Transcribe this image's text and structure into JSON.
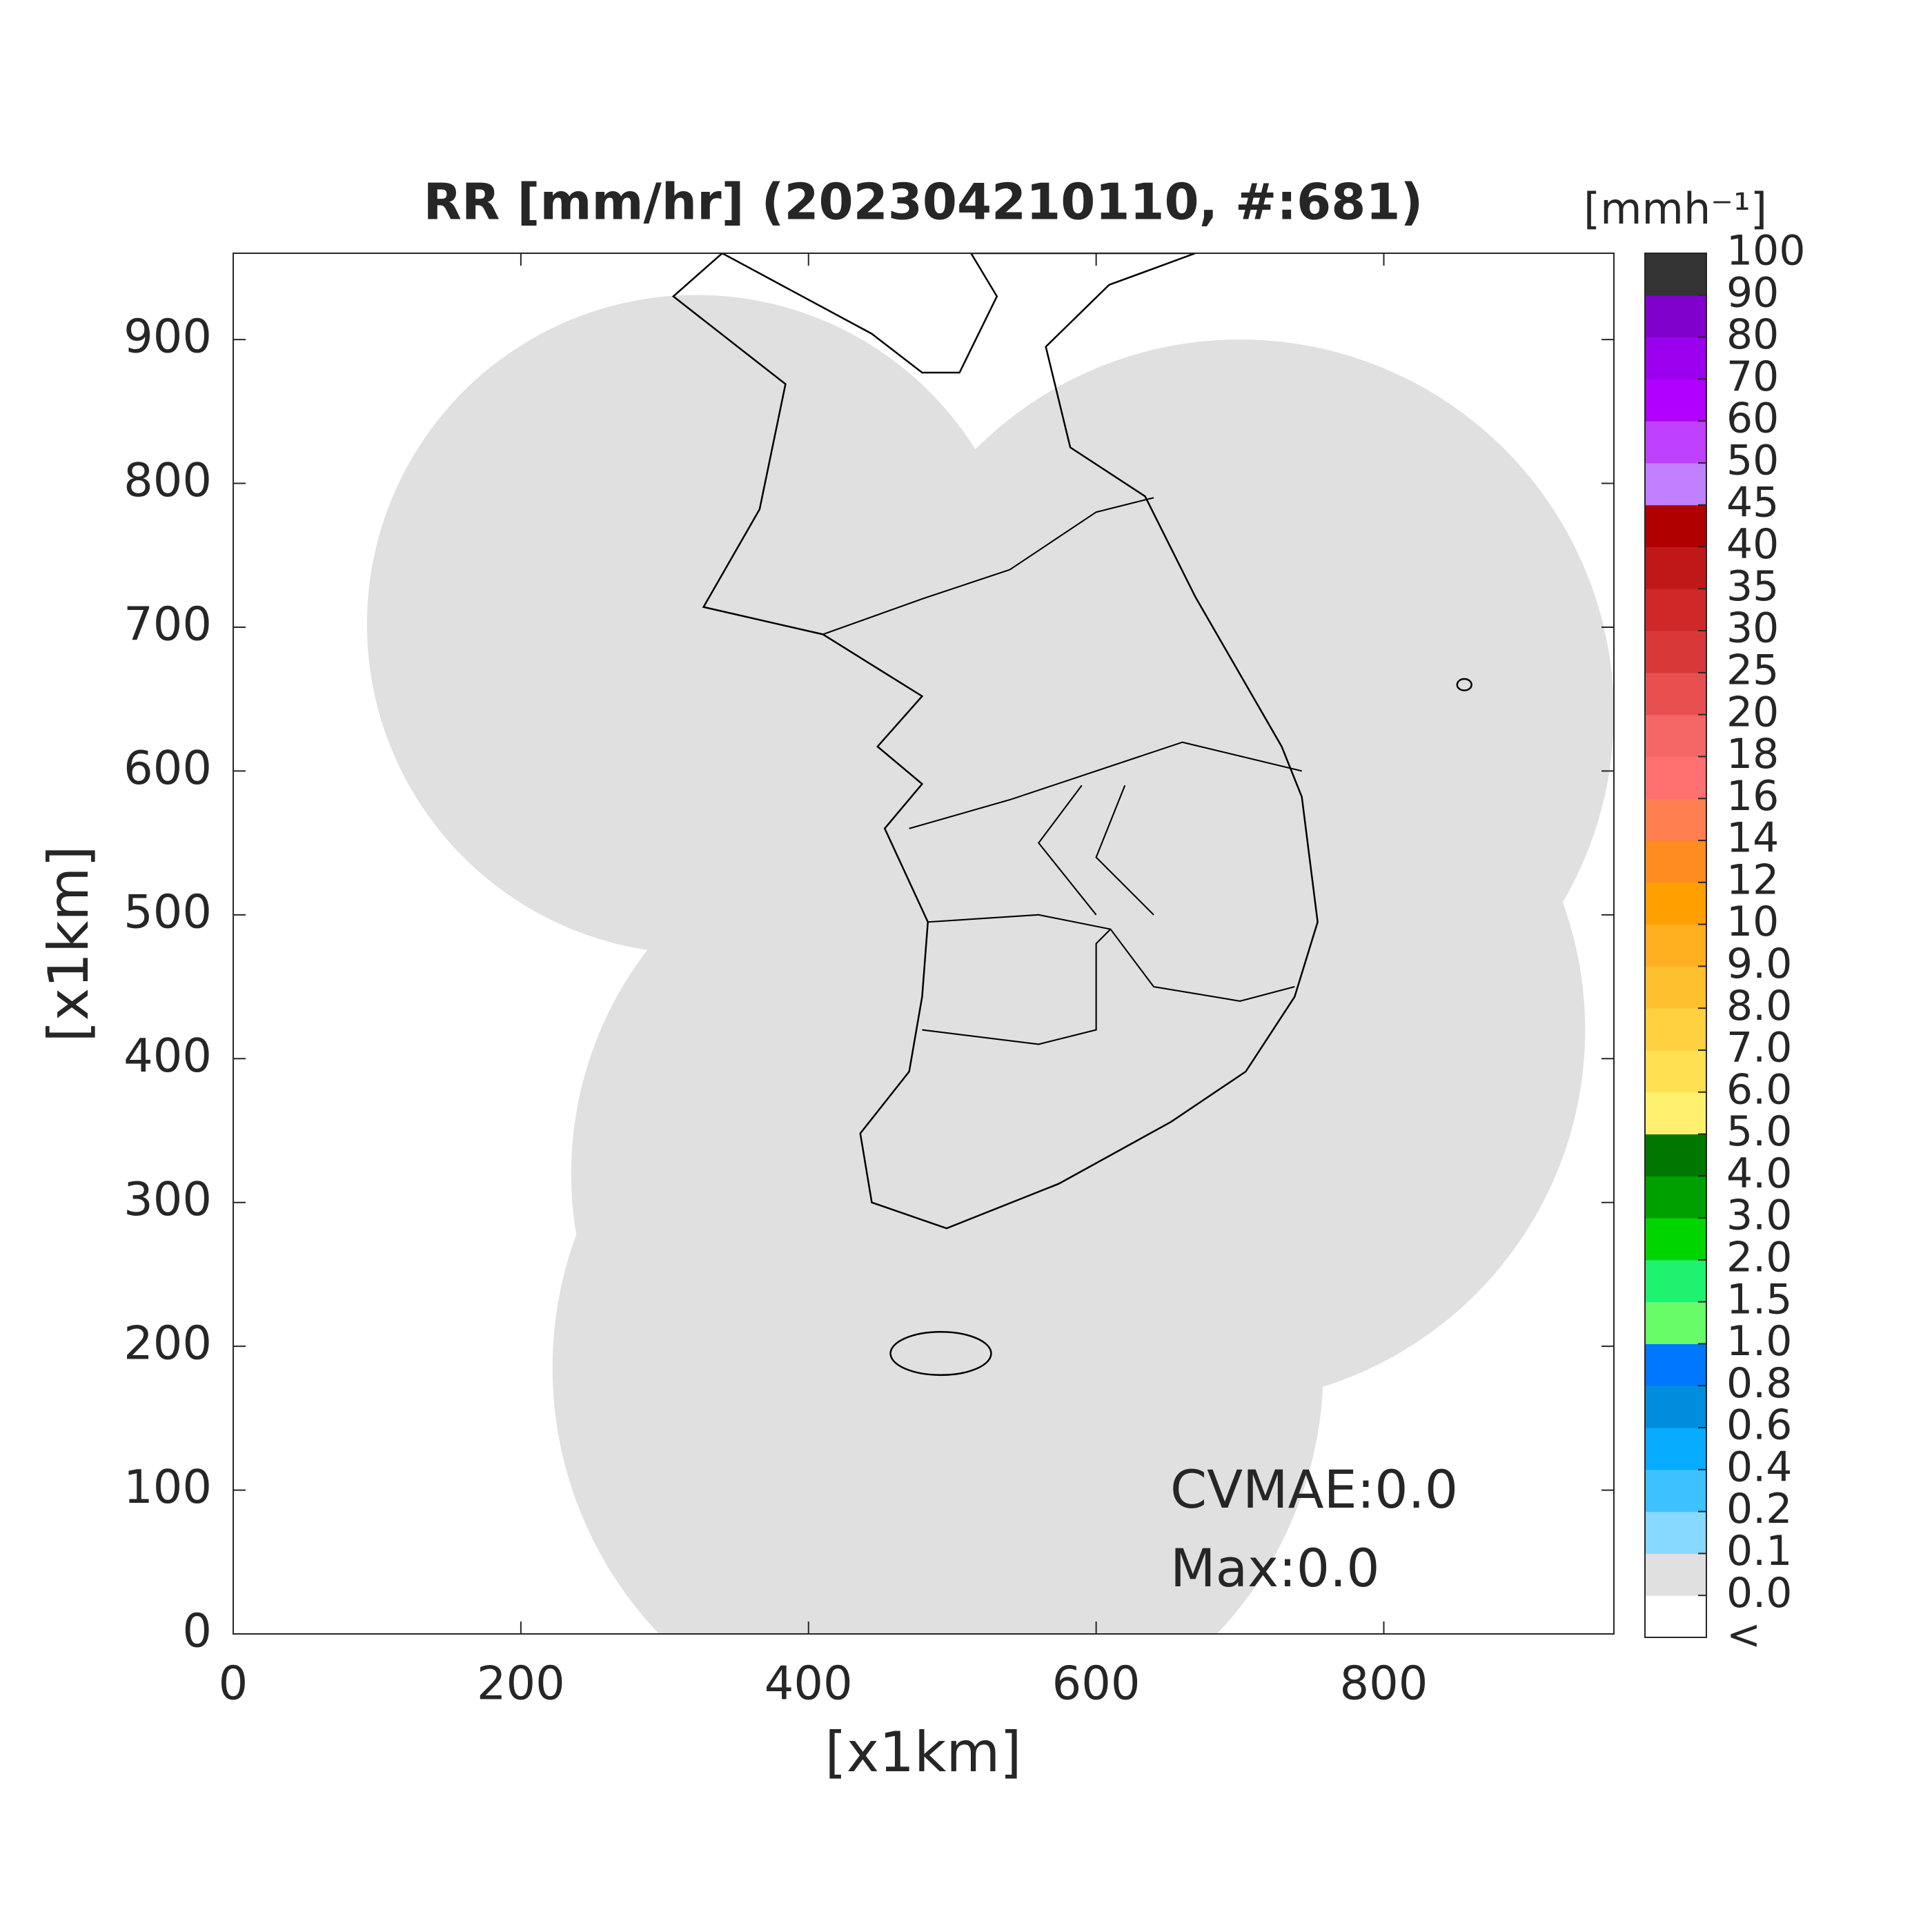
{
  "chart_data": {
    "type": "map",
    "title": "RR [mm/hr] (202304210110, #:681)",
    "xlabel": "[x1km]",
    "ylabel": "[x1km]",
    "xlim": [
      0,
      960
    ],
    "ylim": [
      0,
      960
    ],
    "xticks": [
      0,
      200,
      400,
      600,
      800
    ],
    "yticks": [
      0,
      100,
      200,
      300,
      400,
      500,
      600,
      700,
      800,
      900
    ],
    "annotations": [
      "CVMAE:0.0",
      "Max:0.0"
    ],
    "colorbar": {
      "label": "[mmh⁻¹]",
      "ticks": [
        "<",
        "0.0",
        "0.1",
        "0.2",
        "0.4",
        "0.6",
        "0.8",
        "1.0",
        "1.5",
        "2.0",
        "3.0",
        "4.0",
        "5.0",
        "6.0",
        "7.0",
        "8.0",
        "9.0",
        "10",
        "12",
        "14",
        "16",
        "18",
        "20",
        "25",
        "30",
        "35",
        "40",
        "45",
        "50",
        "60",
        "70",
        "80",
        "90",
        "100"
      ],
      "colors": [
        "#ffffff",
        "#e0e0e0",
        "#87d9ff",
        "#3ec1ff",
        "#07abff",
        "#008dde",
        "#0077ff",
        "#69fc69",
        "#1ef26e",
        "#00d500",
        "#00a000",
        "#007800",
        "#fff06e",
        "#ffe050",
        "#ffd040",
        "#ffc030",
        "#ffb020",
        "#ffa000",
        "#ff8c20",
        "#ff7f50",
        "#ff7070",
        "#f56666",
        "#e85050",
        "#d83838",
        "#d02828",
        "#c01818",
        "#b00000",
        "#c080ff",
        "#c040ff",
        "#b000ff",
        "#9a00ee",
        "#8000cc",
        "#333333"
      ]
    }
  }
}
